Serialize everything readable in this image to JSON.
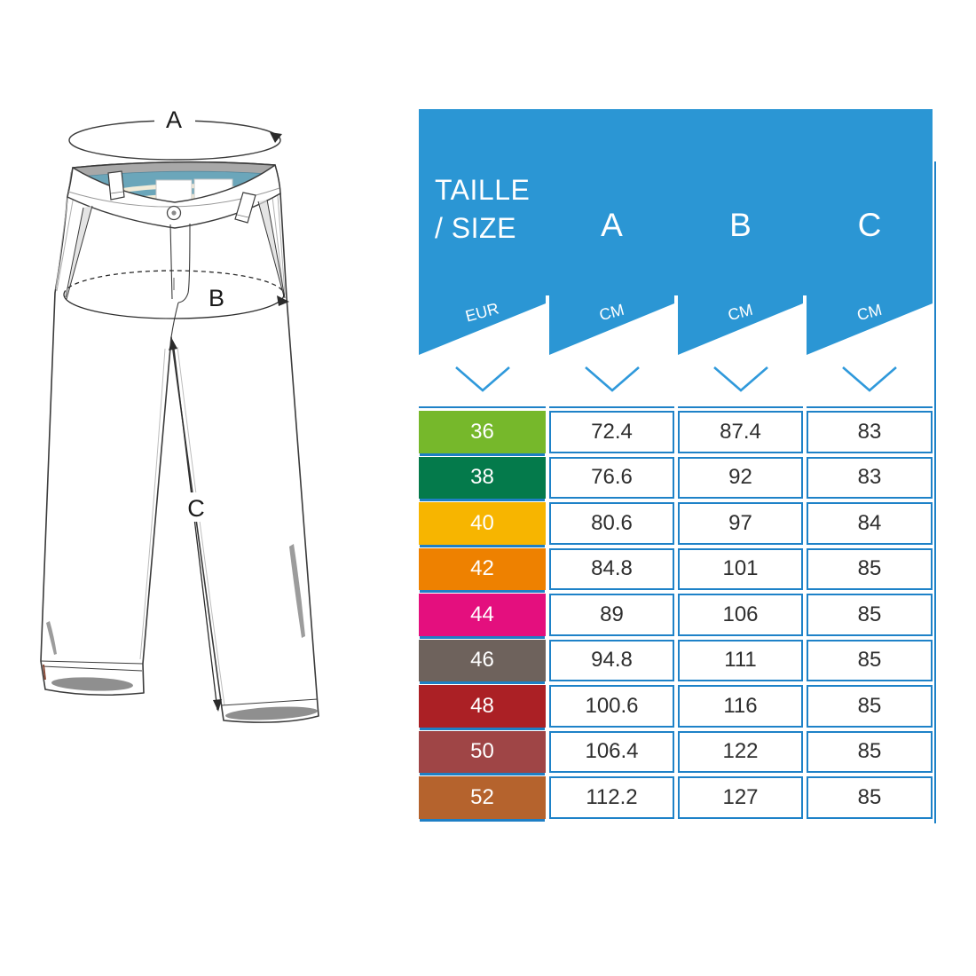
{
  "diagram": {
    "label_a": "A",
    "label_b": "B",
    "label_c": "C"
  },
  "table": {
    "header": {
      "size_line1": "TAILLE",
      "size_line2": "/ SIZE",
      "col_a": "A",
      "col_b": "B",
      "col_c": "C"
    },
    "units": {
      "size": "EUR",
      "a": "CM",
      "b": "CM",
      "c": "CM"
    },
    "rows": [
      {
        "size": "36",
        "color": "#76B82B",
        "a": "72.4",
        "b": "87.4",
        "c": "83"
      },
      {
        "size": "38",
        "color": "#047A4B",
        "a": "76.6",
        "b": "92",
        "c": "83"
      },
      {
        "size": "40",
        "color": "#F7B500",
        "a": "80.6",
        "b": "97",
        "c": "84"
      },
      {
        "size": "42",
        "color": "#EE8100",
        "a": "84.8",
        "b": "101",
        "c": "85"
      },
      {
        "size": "44",
        "color": "#E40F7E",
        "a": "89",
        "b": "106",
        "c": "85"
      },
      {
        "size": "46",
        "color": "#6E625C",
        "a": "94.8",
        "b": "111",
        "c": "85"
      },
      {
        "size": "48",
        "color": "#AB2025",
        "a": "100.6",
        "b": "116",
        "c": "85"
      },
      {
        "size": "50",
        "color": "#9F4546",
        "a": "106.4",
        "b": "122",
        "c": "85"
      },
      {
        "size": "52",
        "color": "#B5632D",
        "a": "112.2",
        "b": "127",
        "c": "85"
      }
    ],
    "colors": {
      "header_blue": "#2B96D4",
      "cell_border_blue": "#1E82C8",
      "chevron_blue": "#2F99DB",
      "value_text": "#2E2E2E"
    }
  }
}
